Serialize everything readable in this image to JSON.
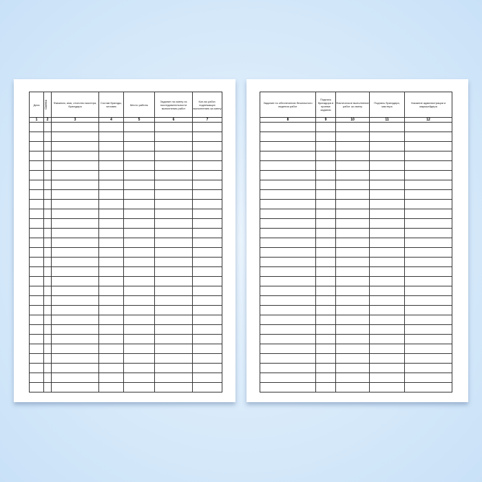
{
  "left_page": {
    "columns": [
      {
        "label": "Дата",
        "number": "1"
      },
      {
        "label": "Смена",
        "number": "2"
      },
      {
        "label": "Фамилия, имя, отчество мастера, бригадира",
        "number": "3"
      },
      {
        "label": "Состав бригады, человек",
        "number": "4"
      },
      {
        "label": "Место работы",
        "number": "5"
      },
      {
        "label": "Задание на смену из последовательности выполнения работ",
        "number": "6"
      },
      {
        "label": "Кол-во работ, подлежащих выполнению за смену",
        "number": "7"
      }
    ]
  },
  "right_page": {
    "columns": [
      {
        "label": "Задание по обеспечению безопасного ведения работ",
        "number": "8"
      },
      {
        "label": "Подпись бригадира в приеме задания",
        "number": "9"
      },
      {
        "label": "Фактическое выполнение работ за смену",
        "number": "10"
      },
      {
        "label": "Подпись бригадира, мастера",
        "number": "11"
      },
      {
        "label": "Указание администрации и маркшейдера",
        "number": "12"
      }
    ]
  }
}
